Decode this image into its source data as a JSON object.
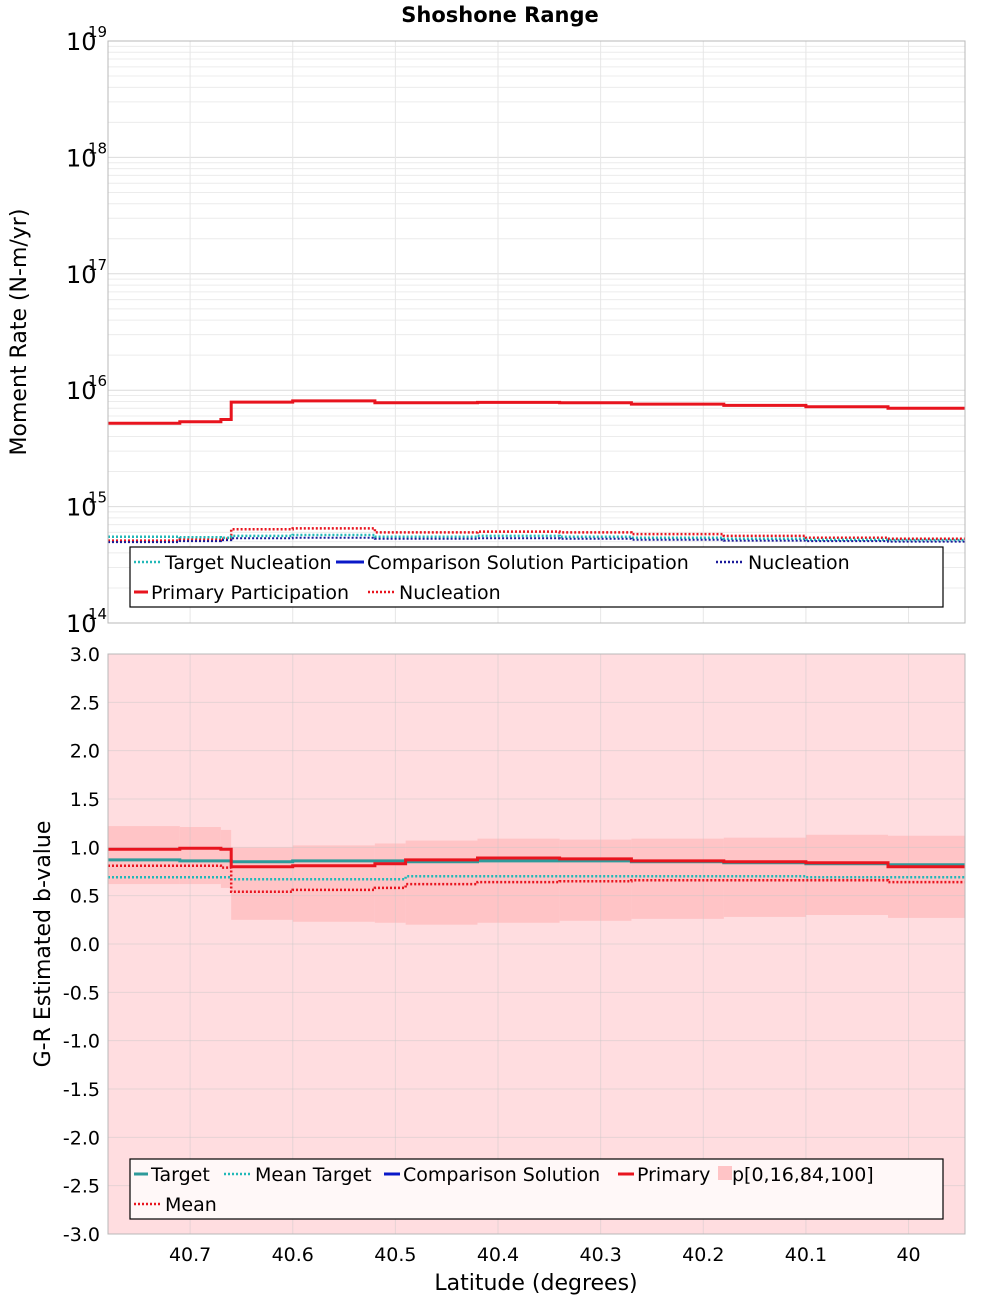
{
  "title": "Shoshone Range",
  "colors": {
    "teal": "#2e9a9a",
    "teal_dot": "#22b8b8",
    "blue": "#0a18c8",
    "navy": "#1a1a9a",
    "red": "#e8141e",
    "band_inner": "#ffc4c6",
    "band_outer": "#ffdde0"
  },
  "chart_data": [
    {
      "type": "line",
      "title": "Shoshone Range",
      "xlabel": "",
      "ylabel": "Moment Rate (N-m/yr)",
      "yscale": "log",
      "xlim": [
        40.78,
        39.945
      ],
      "ylim_exp": [
        14,
        19
      ],
      "ytick_exps": [
        14,
        15,
        16,
        17,
        18,
        19
      ],
      "grid": true,
      "legend_position": "bottom",
      "legend": [
        {
          "label": "Target Nucleation",
          "color": "#22b8b8",
          "style": "dotted"
        },
        {
          "label": "Comparison Solution Participation",
          "color": "#0a18c8",
          "style": "solid"
        },
        {
          "label": "Nucleation",
          "color": "#1a1a9a",
          "style": "dotted"
        },
        {
          "label": "Primary Participation",
          "color": "#e8141e",
          "style": "solid"
        },
        {
          "label": "Nucleation",
          "color": "#e8141e",
          "style": "dotted"
        }
      ],
      "edges": [
        40.78,
        40.71,
        40.67,
        40.66,
        40.6,
        40.52,
        40.42,
        40.34,
        40.27,
        40.18,
        40.1,
        40.02,
        39.945
      ],
      "series": [
        {
          "name": "Primary Participation",
          "color": "#e8141e",
          "style": "solid",
          "width": 3,
          "values": [
            5200000000000000.0,
            5350000000000000.0,
            5600000000000000.0,
            7900000000000000.0,
            8100000000000000.0,
            7800000000000000.0,
            7850000000000000.0,
            7800000000000000.0,
            7600000000000000.0,
            7400000000000000.0,
            7200000000000000.0,
            7000000000000000.0
          ]
        },
        {
          "name": "Nucleation",
          "color": "#e8141e",
          "style": "dotted",
          "width": 2.5,
          "values": [
            510000000000000.0,
            520000000000000.0,
            530000000000000.0,
            640000000000000.0,
            650000000000000.0,
            600000000000000.0,
            610000000000000.0,
            600000000000000.0,
            580000000000000.0,
            560000000000000.0,
            540000000000000.0,
            530000000000000.0
          ]
        },
        {
          "name": "Target Nucleation",
          "color": "#22b8b8",
          "style": "dotted",
          "width": 2.5,
          "values": [
            550000000000000.0,
            545000000000000.0,
            540000000000000.0,
            560000000000000.0,
            570000000000000.0,
            550000000000000.0,
            560000000000000.0,
            550000000000000.0,
            540000000000000.0,
            530000000000000.0,
            520000000000000.0,
            515000000000000.0
          ]
        },
        {
          "name": "Nucleation",
          "color": "#1a1a9a",
          "style": "dotted",
          "width": 2,
          "values": [
            495000000000000.0,
            505000000000000.0,
            515000000000000.0,
            535000000000000.0,
            540000000000000.0,
            530000000000000.0,
            535000000000000.0,
            530000000000000.0,
            520000000000000.0,
            510000000000000.0,
            505000000000000.0,
            500000000000000.0
          ]
        }
      ]
    },
    {
      "type": "line",
      "title": "",
      "xlabel": "Latitude (degrees)",
      "ylabel": "G-R Estimated b-value",
      "xlim": [
        40.78,
        39.945
      ],
      "ylim": [
        -3.0,
        3.0
      ],
      "yticks": [
        "3.0",
        "2.5",
        "2.0",
        "1.5",
        "1.0",
        "0.5",
        "0.0",
        "-0.5",
        "-1.0",
        "-1.5",
        "-2.0",
        "-2.5",
        "-3.0"
      ],
      "xticks": [
        "40.7",
        "40.6",
        "40.5",
        "40.4",
        "40.3",
        "40.2",
        "40.1",
        "40"
      ],
      "xtick_values": [
        40.7,
        40.6,
        40.5,
        40.4,
        40.3,
        40.2,
        40.1,
        40.0
      ],
      "grid": true,
      "legend_position": "bottom",
      "legend": [
        {
          "label": "Target",
          "color": "#2e9a9a",
          "style": "solid"
        },
        {
          "label": "Mean Target",
          "color": "#22b8b8",
          "style": "dotted"
        },
        {
          "label": "Comparison Solution",
          "color": "#0a18c8",
          "style": "solid"
        },
        {
          "label": "Primary",
          "color": "#e8141e",
          "style": "solid"
        },
        {
          "label": "p[0,16,84,100]",
          "color": "#ffc4c6",
          "style": "box"
        },
        {
          "label": "Mean",
          "color": "#e8141e",
          "style": "dotted"
        }
      ],
      "edges": [
        40.78,
        40.71,
        40.67,
        40.66,
        40.6,
        40.52,
        40.49,
        40.42,
        40.34,
        40.27,
        40.18,
        40.1,
        40.02,
        39.945
      ],
      "band_outer": [
        -3.0,
        3.0
      ],
      "band_p16": [
        0.62,
        0.62,
        0.58,
        0.25,
        0.23,
        0.22,
        0.2,
        0.22,
        0.24,
        0.26,
        0.28,
        0.3,
        0.27
      ],
      "band_p84": [
        1.22,
        1.21,
        1.18,
        1.0,
        1.02,
        1.04,
        1.07,
        1.09,
        1.08,
        1.09,
        1.1,
        1.13,
        1.12
      ],
      "series": [
        {
          "name": "Target",
          "color": "#2e9a9a",
          "style": "solid",
          "width": 3,
          "values": [
            0.87,
            0.86,
            0.86,
            0.85,
            0.86,
            0.86,
            0.85,
            0.86,
            0.86,
            0.85,
            0.84,
            0.83,
            0.82
          ]
        },
        {
          "name": "Primary",
          "color": "#e8141e",
          "style": "solid",
          "width": 3,
          "values": [
            0.98,
            0.99,
            0.98,
            0.8,
            0.81,
            0.83,
            0.87,
            0.89,
            0.88,
            0.86,
            0.85,
            0.84,
            0.8
          ]
        },
        {
          "name": "Mean Target",
          "color": "#22b8b8",
          "style": "dotted",
          "width": 2.5,
          "values": [
            0.69,
            0.69,
            0.69,
            0.67,
            0.67,
            0.67,
            0.7,
            0.7,
            0.7,
            0.7,
            0.7,
            0.69,
            0.69
          ]
        },
        {
          "name": "Mean",
          "color": "#e8141e",
          "style": "dotted",
          "width": 2.5,
          "values": [
            0.81,
            0.81,
            0.79,
            0.54,
            0.56,
            0.58,
            0.62,
            0.64,
            0.65,
            0.66,
            0.66,
            0.66,
            0.64
          ]
        }
      ]
    }
  ]
}
